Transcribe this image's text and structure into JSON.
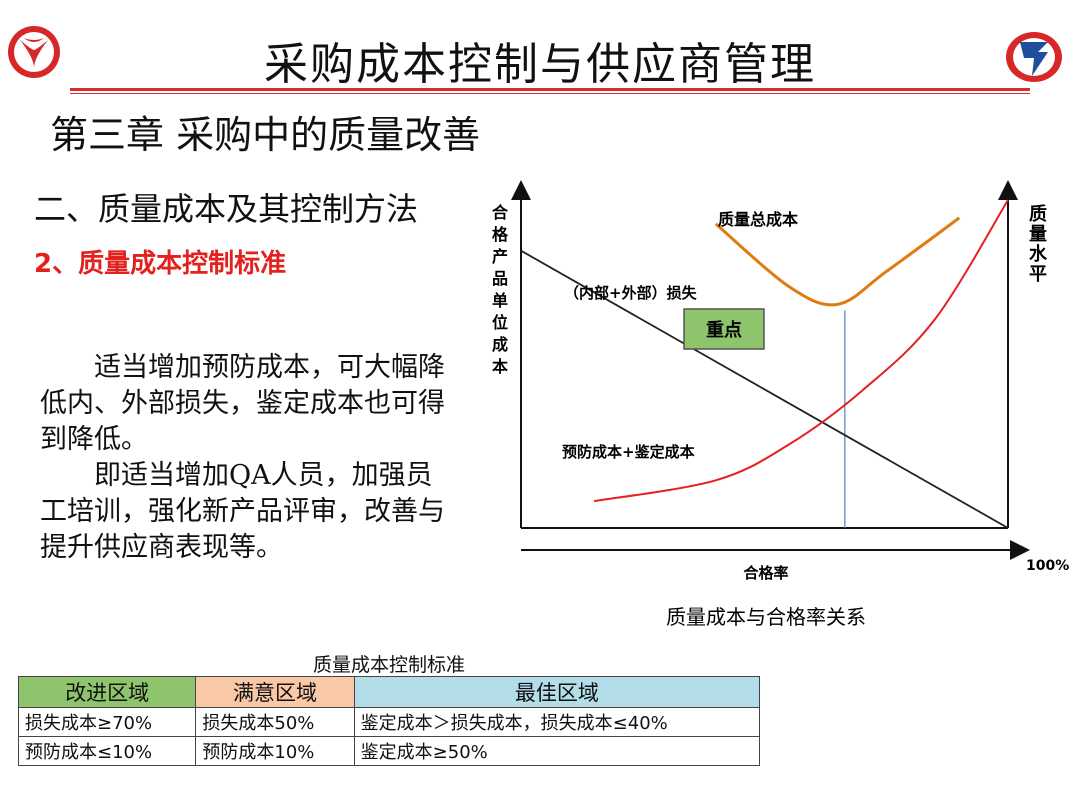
{
  "header": {
    "title": "采购成本控制与供应商管理",
    "left_logo": "dongfeng-logo",
    "right_logo": "company-emblem-logo"
  },
  "chapter": "第三章  采购中的质量改善",
  "section": "二、质量成本及其控制方法",
  "subsection": "2、质量成本控制标准",
  "body": {
    "para1": "适当增加预防成本，可大幅降低内、外部损失，鉴定成本也可得到降低。",
    "para2": "即适当增加QA人员，加强员工培训，强化新产品评审，改善与提升供应商表现等。"
  },
  "chart_data": {
    "type": "line",
    "title": "质量总成本",
    "caption": "质量成本与合格率关系",
    "xlabel": "合格率",
    "x_end_label": "100%",
    "ylabel_left": "合格产品单位成本",
    "ylabel_right": "质量水平",
    "highlight_label": "重点",
    "series": [
      {
        "name": "（内部+外部）损失",
        "color": "#222222",
        "x": [
          0,
          1
        ],
        "y": [
          0.93,
          0
        ]
      },
      {
        "name": "预防成本+鉴定成本",
        "color": "#e3211e",
        "x": [
          0.15,
          0.4,
          0.55,
          0.7,
          0.85,
          1.0
        ],
        "y": [
          0.09,
          0.16,
          0.28,
          0.46,
          0.7,
          1.1
        ]
      },
      {
        "name": "质量总成本",
        "color": "#e07b12",
        "x": [
          0.4,
          0.55,
          0.65,
          0.75,
          0.9
        ],
        "y": [
          1.02,
          0.81,
          0.75,
          0.86,
          1.04
        ]
      }
    ],
    "optimum_x": 0.665
  },
  "table": {
    "title": "质量成本控制标准",
    "headers": [
      "改进区域",
      "满意区域",
      "最佳区域"
    ],
    "rows": [
      [
        "损失成本≥70%",
        "损失成本50%",
        "鉴定成本＞损失成本，损失成本≤40%"
      ],
      [
        "预防成本≤10%",
        "预防成本10%",
        "鉴定成本≥50%"
      ]
    ]
  },
  "colors": {
    "accent_red": "#e3211e",
    "rule_red": "#d32f2f",
    "green_header": "#8ec46b",
    "peach_header": "#f9c8a6",
    "blue_header": "#b3dde8"
  }
}
